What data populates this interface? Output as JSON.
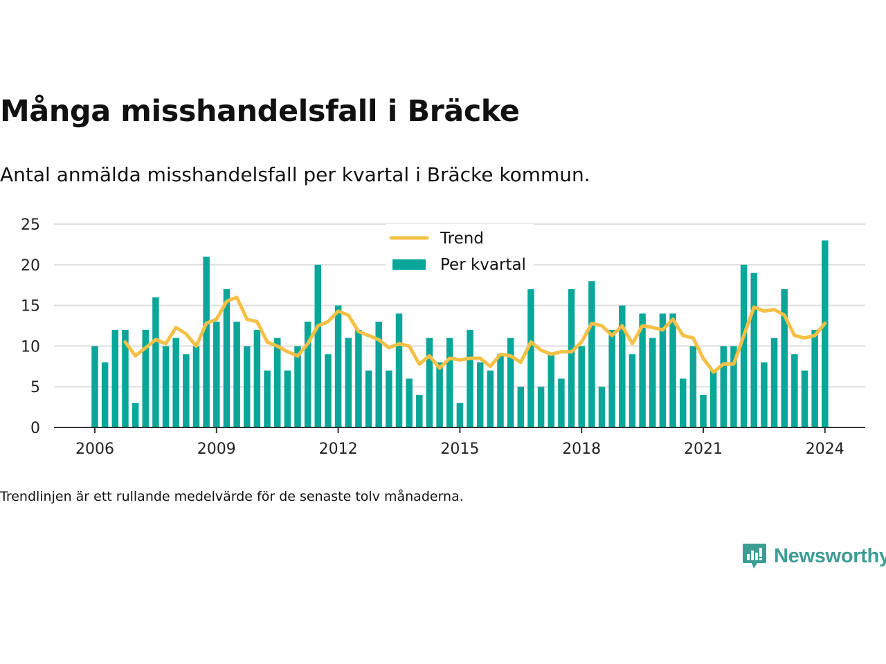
{
  "header": {
    "title": "Många misshandelsfall i Bräcke",
    "subtitle": "Antal anmälda misshandelsfall per kvartal i Bräcke kommun."
  },
  "footnote": "Trendlinjen är ett rullande medelvärde för de senaste tolv månaderna.",
  "brand": {
    "name": "Newsworthy",
    "icon": "newsworthy-logo-icon",
    "color": "#3d9c94"
  },
  "chart_data": {
    "type": "bar",
    "x_start": "2006-Q1",
    "x_ticks": [
      "2006",
      "2009",
      "2012",
      "2015",
      "2018",
      "2021",
      "2024"
    ],
    "y_ticks": [
      0,
      5,
      10,
      15,
      20,
      25
    ],
    "ylim": [
      0,
      25
    ],
    "grid": true,
    "legend_position": "top-center",
    "series": [
      {
        "name": "Per kvartal",
        "type": "bar",
        "color": "#0aa699",
        "values": [
          10,
          8,
          12,
          12,
          3,
          12,
          16,
          10,
          11,
          9,
          10,
          21,
          13,
          17,
          13,
          10,
          12,
          7,
          11,
          7,
          10,
          13,
          20,
          9,
          15,
          11,
          12,
          7,
          13,
          7,
          14,
          6,
          4,
          11,
          8,
          11,
          3,
          12,
          8,
          7,
          9,
          11,
          5,
          17,
          5,
          9,
          6,
          17,
          10,
          18,
          5,
          12,
          15,
          9,
          14,
          11,
          14,
          14,
          6,
          10,
          4,
          7,
          10,
          10,
          20,
          19,
          8,
          11,
          17,
          9,
          7,
          12,
          23
        ]
      },
      {
        "name": "Trend",
        "type": "line",
        "color": "#f5c045",
        "values": [
          null,
          null,
          null,
          10.5,
          8.8,
          9.8,
          10.8,
          10.3,
          12.3,
          11.5,
          10.0,
          12.8,
          13.3,
          15.5,
          16.0,
          13.3,
          13.0,
          10.5,
          10.0,
          9.3,
          8.8,
          10.3,
          12.5,
          13.0,
          14.3,
          13.8,
          11.8,
          11.3,
          10.8,
          9.8,
          10.3,
          10.0,
          7.8,
          8.8,
          7.3,
          8.5,
          8.3,
          8.5,
          8.5,
          7.5,
          9.0,
          8.8,
          8.0,
          10.5,
          9.5,
          9.0,
          9.3,
          9.3,
          10.5,
          12.8,
          12.5,
          11.3,
          12.5,
          10.3,
          12.5,
          12.3,
          12.0,
          13.3,
          11.3,
          11.0,
          8.5,
          6.8,
          7.8,
          7.8,
          11.3,
          14.8,
          14.3,
          14.5,
          13.8,
          11.3,
          11.0,
          11.3,
          12.8
        ]
      }
    ]
  }
}
